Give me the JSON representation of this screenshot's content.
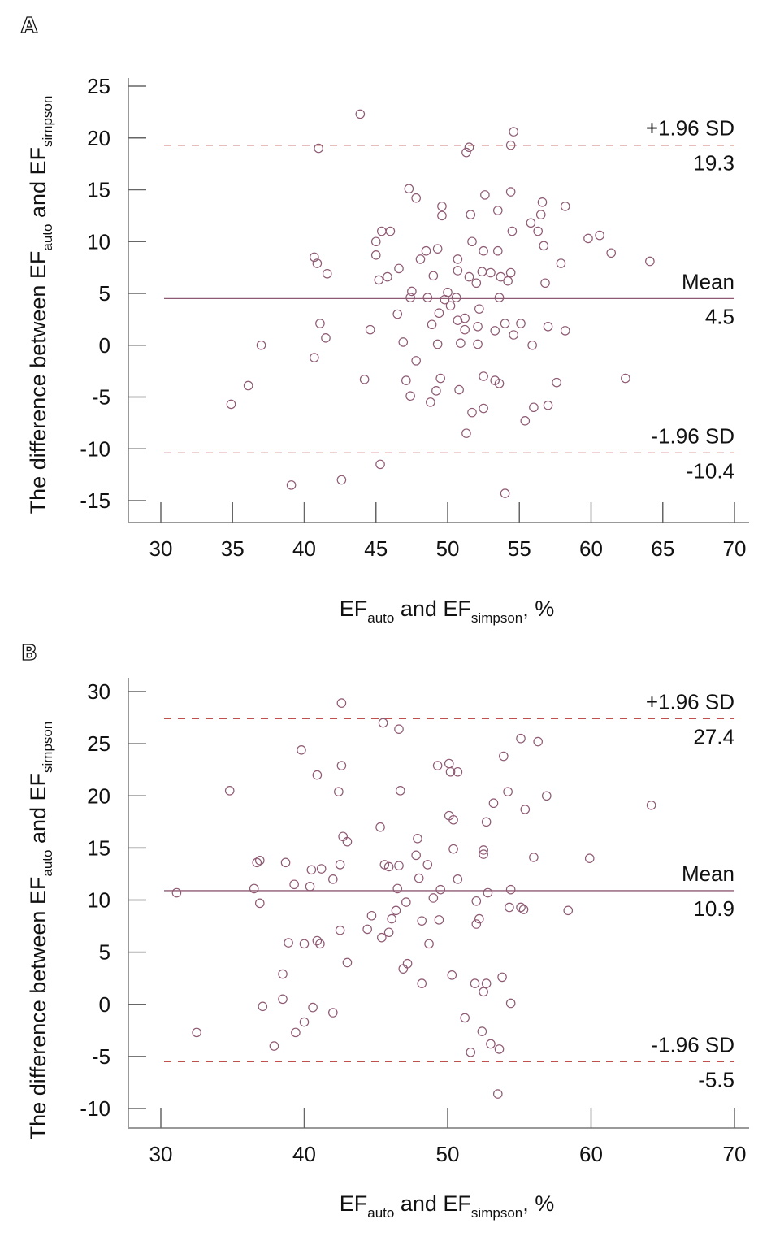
{
  "figure": {
    "panels": [
      "A",
      "B"
    ]
  },
  "chart_data": [
    {
      "type": "scatter",
      "panel_label": "A",
      "title": "",
      "xlabel": {
        "main": "EF",
        "sub1": "auto",
        "mid": " and EF",
        "sub2": "simpson",
        "tail": ", %"
      },
      "ylabel": {
        "main": "The difference between EF",
        "sub1": "auto",
        "mid": " and EF",
        "sub2": "simpson"
      },
      "xlim": [
        27.7,
        71
      ],
      "ylim": [
        -17.1,
        26.5
      ],
      "xticks": [
        30,
        35,
        40,
        45,
        50,
        55,
        60,
        65,
        70
      ],
      "yticks": [
        25,
        20,
        15,
        10,
        5,
        0,
        -5,
        -10,
        -15
      ],
      "grid": false,
      "reference_lines": [
        {
          "name": "upper-loa",
          "value": 19.3,
          "label_top": "+1.96 SD",
          "label_bottom": "19.3",
          "style": "dashed",
          "color": "#c0504d"
        },
        {
          "name": "mean",
          "value": 4.5,
          "label_top": "Mean",
          "label_bottom": "4.5",
          "style": "solid",
          "color": "#8e5a73"
        },
        {
          "name": "lower-loa",
          "value": -10.4,
          "label_top": "-1.96 SD",
          "label_bottom": "-10.4",
          "style": "dashed",
          "color": "#c0504d"
        }
      ],
      "marker_color": "#8e5a73",
      "points": [
        [
          43.9,
          22.3
        ],
        [
          41.0,
          19.0
        ],
        [
          51.5,
          19.1
        ],
        [
          51.3,
          18.6
        ],
        [
          54.6,
          20.6
        ],
        [
          54.4,
          19.3
        ],
        [
          47.3,
          15.1
        ],
        [
          47.8,
          14.2
        ],
        [
          52.6,
          14.5
        ],
        [
          54.4,
          14.8
        ],
        [
          49.6,
          13.4
        ],
        [
          49.6,
          12.5
        ],
        [
          51.6,
          12.6
        ],
        [
          53.5,
          13.0
        ],
        [
          55.8,
          11.8
        ],
        [
          56.6,
          13.8
        ],
        [
          56.5,
          12.6
        ],
        [
          58.2,
          13.4
        ],
        [
          45.4,
          11.0
        ],
        [
          46.0,
          11.0
        ],
        [
          45.0,
          10.0
        ],
        [
          45.0,
          8.7
        ],
        [
          48.5,
          9.1
        ],
        [
          49.3,
          9.3
        ],
        [
          51.7,
          10.0
        ],
        [
          52.5,
          9.1
        ],
        [
          53.5,
          9.1
        ],
        [
          54.5,
          11.0
        ],
        [
          56.3,
          11.0
        ],
        [
          56.7,
          9.6
        ],
        [
          59.8,
          10.3
        ],
        [
          60.6,
          10.6
        ],
        [
          61.4,
          8.9
        ],
        [
          57.9,
          7.9
        ],
        [
          64.1,
          8.1
        ],
        [
          40.7,
          8.5
        ],
        [
          40.9,
          7.9
        ],
        [
          41.6,
          6.9
        ],
        [
          45.2,
          6.3
        ],
        [
          45.8,
          6.6
        ],
        [
          46.6,
          7.4
        ],
        [
          48.1,
          8.3
        ],
        [
          49.0,
          6.7
        ],
        [
          50.7,
          8.3
        ],
        [
          50.7,
          7.2
        ],
        [
          51.5,
          6.6
        ],
        [
          52.0,
          6.0
        ],
        [
          52.4,
          7.1
        ],
        [
          53.0,
          7.0
        ],
        [
          53.7,
          6.6
        ],
        [
          54.2,
          6.2
        ],
        [
          54.4,
          7.0
        ],
        [
          56.8,
          6.0
        ],
        [
          47.5,
          5.2
        ],
        [
          47.4,
          4.6
        ],
        [
          48.6,
          4.6
        ],
        [
          49.8,
          4.4
        ],
        [
          50.0,
          5.1
        ],
        [
          50.2,
          3.8
        ],
        [
          50.6,
          4.6
        ],
        [
          52.2,
          3.5
        ],
        [
          53.6,
          4.6
        ],
        [
          46.5,
          3.0
        ],
        [
          49.4,
          3.1
        ],
        [
          48.9,
          2.0
        ],
        [
          50.7,
          2.4
        ],
        [
          51.2,
          2.6
        ],
        [
          51.2,
          1.5
        ],
        [
          52.1,
          1.8
        ],
        [
          53.3,
          1.4
        ],
        [
          54.0,
          2.1
        ],
        [
          55.1,
          2.1
        ],
        [
          54.6,
          1.0
        ],
        [
          57.0,
          1.8
        ],
        [
          58.2,
          1.4
        ],
        [
          41.1,
          2.1
        ],
        [
          41.5,
          0.7
        ],
        [
          44.6,
          1.5
        ],
        [
          37.0,
          0.0
        ],
        [
          46.9,
          0.3
        ],
        [
          49.3,
          0.1
        ],
        [
          50.9,
          0.2
        ],
        [
          52.1,
          0.1
        ],
        [
          55.9,
          0.0
        ],
        [
          40.7,
          -1.2
        ],
        [
          47.8,
          -1.5
        ],
        [
          44.2,
          -3.3
        ],
        [
          47.1,
          -3.4
        ],
        [
          49.5,
          -3.2
        ],
        [
          52.5,
          -3.0
        ],
        [
          53.3,
          -3.4
        ],
        [
          53.6,
          -3.7
        ],
        [
          57.6,
          -3.6
        ],
        [
          62.4,
          -3.2
        ],
        [
          36.1,
          -3.9
        ],
        [
          34.9,
          -5.7
        ],
        [
          47.4,
          -4.9
        ],
        [
          48.8,
          -5.5
        ],
        [
          49.2,
          -4.4
        ],
        [
          50.8,
          -4.3
        ],
        [
          51.7,
          -6.5
        ],
        [
          52.5,
          -6.1
        ],
        [
          56.0,
          -6.0
        ],
        [
          57.0,
          -5.8
        ],
        [
          55.4,
          -7.3
        ],
        [
          51.3,
          -8.5
        ],
        [
          45.3,
          -11.5
        ],
        [
          39.1,
          -13.5
        ],
        [
          42.6,
          -13.0
        ],
        [
          54.0,
          -14.3
        ]
      ]
    },
    {
      "type": "scatter",
      "panel_label": "B",
      "title": "",
      "xlabel": {
        "main": "EF",
        "sub1": "auto",
        "mid": " and EF",
        "sub2": "simpson",
        "tail": ", %"
      },
      "ylabel": {
        "main": "The difference between EF",
        "sub1": "auto",
        "mid": " and EF",
        "sub2": "simpson"
      },
      "xlim": [
        27.7,
        71
      ],
      "ylim": [
        -11.9,
        31.1
      ],
      "xticks": [
        30,
        40,
        50,
        60,
        70
      ],
      "yticks": [
        30,
        25,
        20,
        15,
        10,
        5,
        0,
        -5,
        -10
      ],
      "grid": false,
      "reference_lines": [
        {
          "name": "upper-loa",
          "value": 27.4,
          "label_top": "+1.96 SD",
          "label_bottom": "27.4",
          "style": "dashed",
          "color": "#c0504d"
        },
        {
          "name": "mean",
          "value": 10.9,
          "label_top": "Mean",
          "label_bottom": "10.9",
          "style": "solid",
          "color": "#8e5a73"
        },
        {
          "name": "lower-loa",
          "value": -5.5,
          "label_top": "-1.96 SD",
          "label_bottom": "-5.5",
          "style": "dashed",
          "color": "#c0504d"
        }
      ],
      "marker_color": "#8e5a73",
      "points": [
        [
          42.6,
          28.9
        ],
        [
          45.5,
          27.0
        ],
        [
          46.6,
          26.4
        ],
        [
          39.8,
          24.4
        ],
        [
          42.6,
          22.9
        ],
        [
          40.9,
          22.0
        ],
        [
          49.3,
          22.9
        ],
        [
          50.1,
          23.1
        ],
        [
          50.2,
          22.3
        ],
        [
          50.7,
          22.3
        ],
        [
          55.1,
          25.5
        ],
        [
          56.3,
          25.2
        ],
        [
          53.9,
          23.8
        ],
        [
          34.8,
          20.5
        ],
        [
          42.4,
          20.4
        ],
        [
          46.7,
          20.5
        ],
        [
          54.2,
          20.4
        ],
        [
          56.9,
          20.0
        ],
        [
          53.2,
          19.3
        ],
        [
          55.4,
          18.7
        ],
        [
          64.2,
          19.1
        ],
        [
          50.1,
          18.1
        ],
        [
          50.4,
          17.7
        ],
        [
          45.3,
          17.0
        ],
        [
          52.7,
          17.5
        ],
        [
          42.7,
          16.1
        ],
        [
          43.0,
          15.6
        ],
        [
          47.9,
          15.9
        ],
        [
          50.4,
          14.9
        ],
        [
          52.5,
          14.8
        ],
        [
          52.5,
          14.4
        ],
        [
          56.0,
          14.1
        ],
        [
          59.9,
          14.0
        ],
        [
          36.7,
          13.6
        ],
        [
          36.9,
          13.8
        ],
        [
          38.7,
          13.6
        ],
        [
          40.5,
          12.9
        ],
        [
          41.2,
          13.0
        ],
        [
          42.5,
          13.4
        ],
        [
          45.6,
          13.4
        ],
        [
          45.9,
          13.2
        ],
        [
          46.6,
          13.3
        ],
        [
          47.8,
          14.3
        ],
        [
          48.6,
          13.4
        ],
        [
          36.5,
          11.1
        ],
        [
          39.3,
          11.5
        ],
        [
          40.4,
          11.3
        ],
        [
          42.0,
          12.0
        ],
        [
          46.5,
          11.1
        ],
        [
          48.0,
          12.1
        ],
        [
          49.5,
          11.0
        ],
        [
          50.7,
          12.0
        ],
        [
          54.4,
          11.0
        ],
        [
          31.1,
          10.7
        ],
        [
          36.9,
          9.7
        ],
        [
          47.1,
          9.8
        ],
        [
          49.0,
          10.2
        ],
        [
          52.0,
          9.9
        ],
        [
          52.8,
          10.7
        ],
        [
          46.4,
          9.0
        ],
        [
          54.3,
          9.3
        ],
        [
          55.1,
          9.3
        ],
        [
          55.3,
          9.1
        ],
        [
          58.4,
          9.0
        ],
        [
          44.7,
          8.5
        ],
        [
          46.1,
          8.2
        ],
        [
          48.2,
          8.0
        ],
        [
          49.4,
          8.1
        ],
        [
          52.0,
          7.7
        ],
        [
          52.2,
          8.2
        ],
        [
          42.5,
          7.1
        ],
        [
          44.4,
          7.2
        ],
        [
          45.4,
          6.4
        ],
        [
          45.9,
          6.9
        ],
        [
          48.7,
          5.8
        ],
        [
          38.9,
          5.9
        ],
        [
          40.0,
          5.8
        ],
        [
          40.9,
          6.1
        ],
        [
          41.1,
          5.8
        ],
        [
          43.0,
          4.0
        ],
        [
          46.9,
          3.4
        ],
        [
          47.2,
          3.9
        ],
        [
          38.5,
          2.9
        ],
        [
          48.2,
          2.0
        ],
        [
          50.3,
          2.8
        ],
        [
          51.9,
          2.0
        ],
        [
          52.7,
          2.0
        ],
        [
          52.5,
          1.2
        ],
        [
          53.8,
          2.6
        ],
        [
          38.5,
          0.5
        ],
        [
          37.1,
          -0.2
        ],
        [
          40.6,
          -0.3
        ],
        [
          54.4,
          0.1
        ],
        [
          42.0,
          -0.8
        ],
        [
          40.0,
          -1.7
        ],
        [
          51.2,
          -1.3
        ],
        [
          32.5,
          -2.7
        ],
        [
          39.4,
          -2.7
        ],
        [
          52.4,
          -2.6
        ],
        [
          53.0,
          -3.8
        ],
        [
          37.9,
          -4.0
        ],
        [
          53.6,
          -4.3
        ],
        [
          51.6,
          -4.6
        ],
        [
          53.5,
          -8.6
        ]
      ]
    }
  ]
}
